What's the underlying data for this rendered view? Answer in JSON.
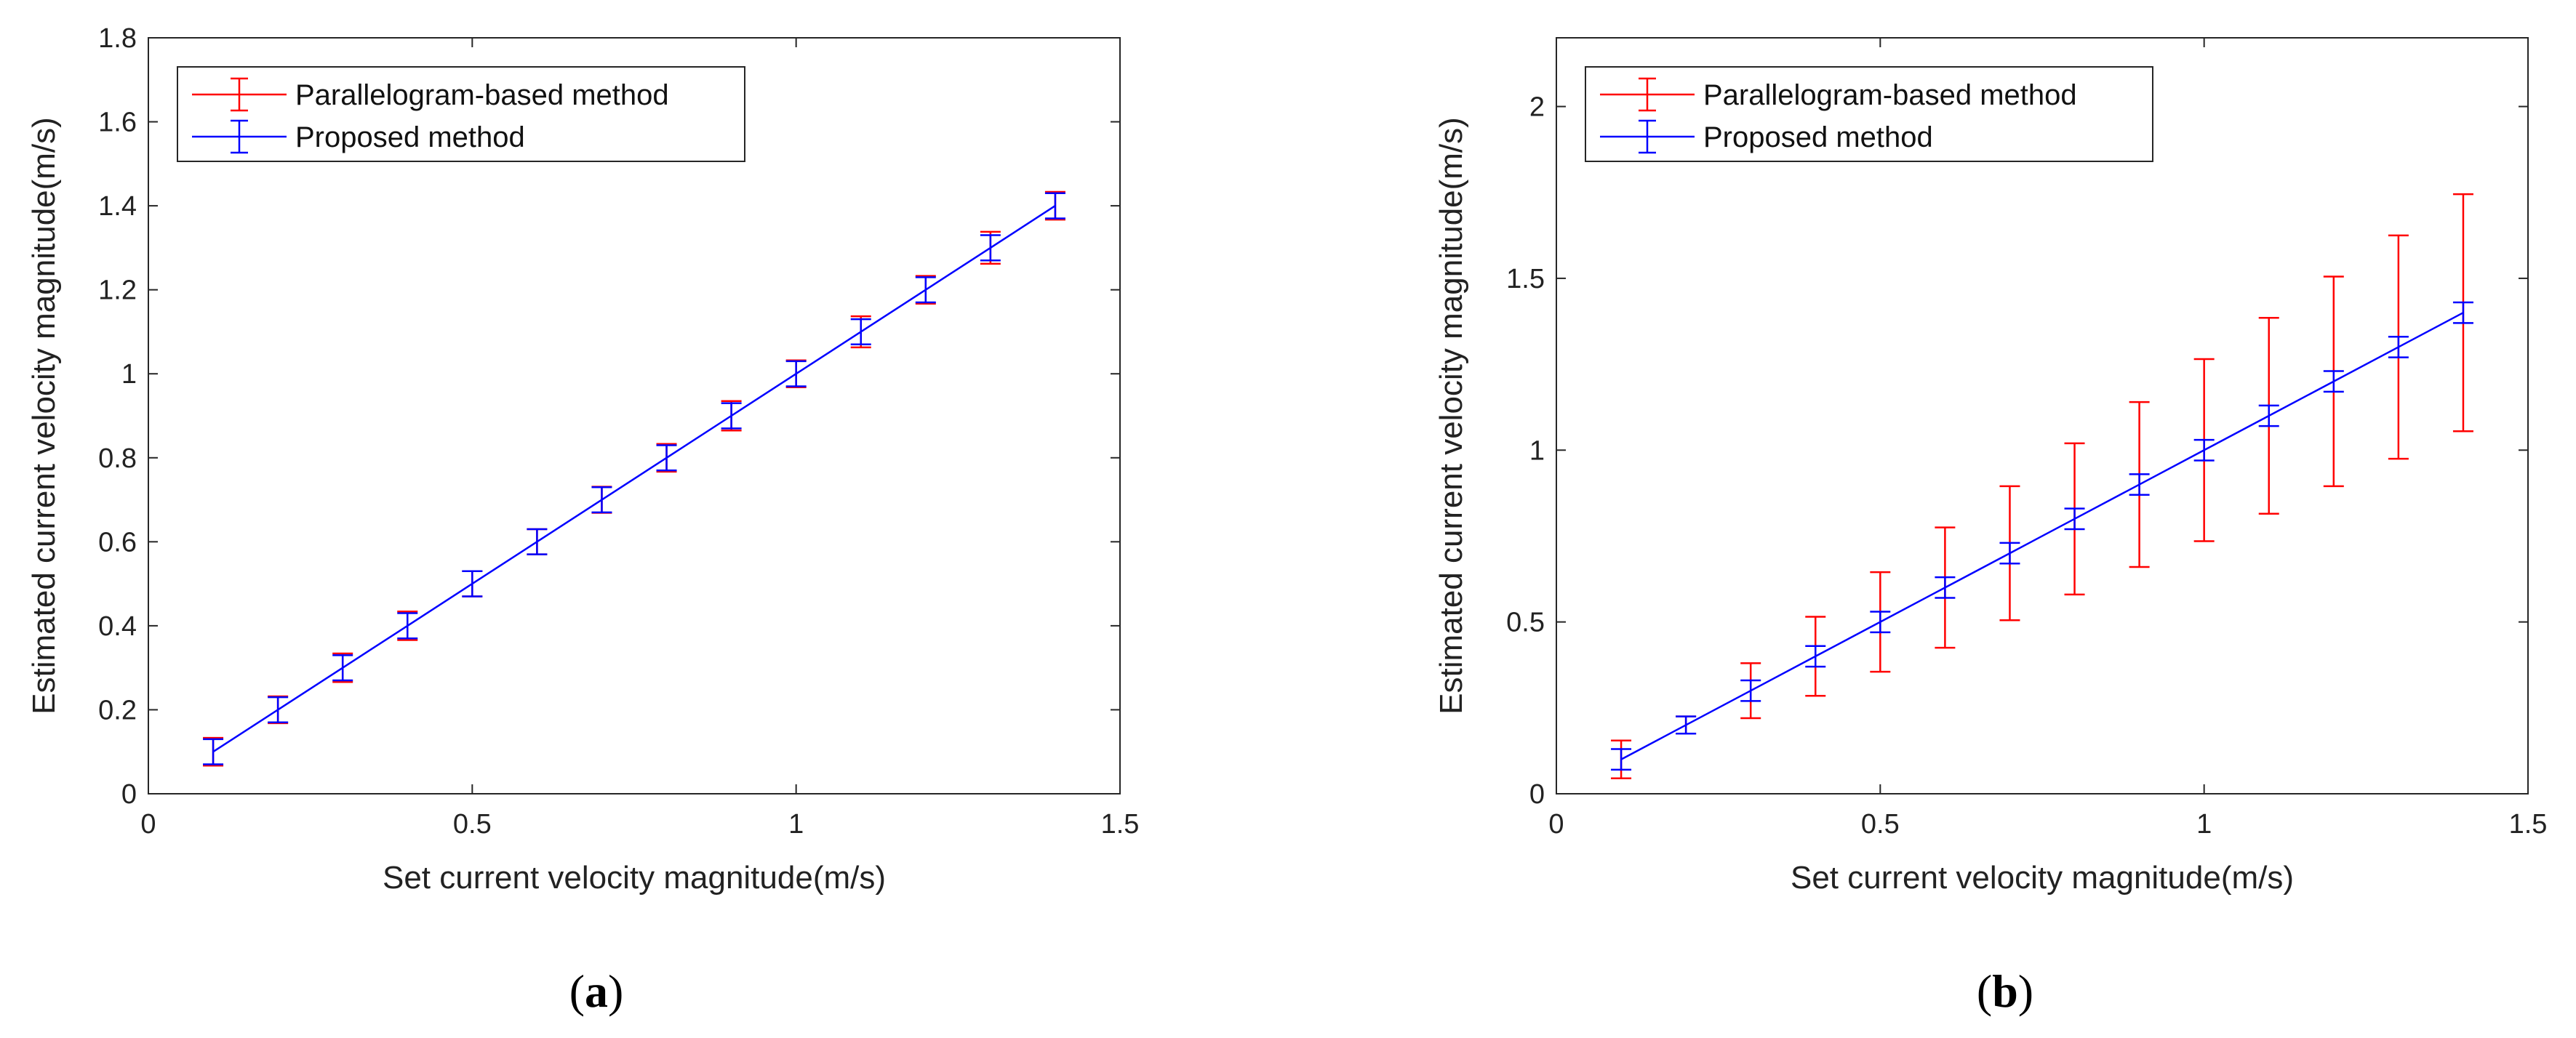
{
  "chart_data": [
    {
      "type": "line",
      "panel_label": "a",
      "panel_open": "(",
      "panel_close": ")",
      "xlabel": "Set current velocity magnitude(m/s)",
      "ylabel": "Estimated current velocity magnitude(m/s)",
      "xlim": [
        0,
        1.5
      ],
      "ylim": [
        0,
        1.8
      ],
      "xticks": [
        0,
        0.5,
        1,
        1.5
      ],
      "xtick_labels": [
        "0",
        "0.5",
        "1",
        "1.5"
      ],
      "yticks": [
        0,
        0.2,
        0.4,
        0.6,
        0.8,
        1.0,
        1.2,
        1.4,
        1.6,
        1.8
      ],
      "ytick_labels": [
        "0",
        "0.2",
        "0.4",
        "0.6",
        "0.8",
        "1",
        "1.2",
        "1.4",
        "1.6",
        "1.8"
      ],
      "legend_position": "top-left",
      "series": [
        {
          "name": "Parallelogram-based method",
          "color": "#ff0000",
          "x": [
            0.1,
            0.2,
            0.3,
            0.4,
            0.5,
            0.6,
            0.7,
            0.8,
            0.9,
            1.0,
            1.1,
            1.2,
            1.3,
            1.4
          ],
          "y": [
            0.1,
            0.2,
            0.3,
            0.4,
            0.5,
            0.6,
            0.7,
            0.8,
            0.9,
            1.0,
            1.1,
            1.2,
            1.3,
            1.4
          ],
          "err": [
            0.033,
            0.032,
            0.034,
            0.034,
            0.03,
            0.03,
            0.031,
            0.033,
            0.035,
            0.032,
            0.037,
            0.033,
            0.038,
            0.033
          ],
          "draw_line": false
        },
        {
          "name": "Proposed method",
          "color": "#0000ff",
          "x": [
            0.1,
            0.2,
            0.3,
            0.4,
            0.5,
            0.6,
            0.7,
            0.8,
            0.9,
            1.0,
            1.1,
            1.2,
            1.3,
            1.4
          ],
          "y": [
            0.1,
            0.2,
            0.3,
            0.4,
            0.5,
            0.6,
            0.7,
            0.8,
            0.9,
            1.0,
            1.1,
            1.2,
            1.3,
            1.4
          ],
          "err": [
            0.03,
            0.03,
            0.03,
            0.03,
            0.03,
            0.03,
            0.03,
            0.03,
            0.03,
            0.03,
            0.03,
            0.03,
            0.03,
            0.03
          ],
          "draw_line": true
        }
      ]
    },
    {
      "type": "line",
      "panel_label": "b",
      "panel_open": "(",
      "panel_close": ")",
      "xlabel": "Set current velocity magnitude(m/s)",
      "ylabel": "Estimated current velocity magnitude(m/s)",
      "xlim": [
        0,
        1.5
      ],
      "ylim": [
        0,
        2.2
      ],
      "xticks": [
        0,
        0.5,
        1,
        1.5
      ],
      "xtick_labels": [
        "0",
        "0.5",
        "1",
        "1.5"
      ],
      "yticks": [
        0,
        0.5,
        1,
        1.5,
        2
      ],
      "ytick_labels": [
        "0",
        "0.5",
        "1",
        "1.5",
        "2"
      ],
      "legend_position": "top-left",
      "series": [
        {
          "name": "Parallelogram-based method",
          "color": "#ff0000",
          "x": [
            0.1,
            0.2,
            0.3,
            0.4,
            0.5,
            0.6,
            0.7,
            0.8,
            0.9,
            1.0,
            1.1,
            1.2,
            1.3,
            1.4
          ],
          "y": [
            0.1,
            0.2,
            0.3,
            0.4,
            0.5,
            0.6,
            0.7,
            0.8,
            0.9,
            1.0,
            1.1,
            1.2,
            1.3,
            1.4
          ],
          "err": [
            0.055,
            0.025,
            0.08,
            0.115,
            0.145,
            0.175,
            0.195,
            0.22,
            0.24,
            0.265,
            0.285,
            0.305,
            0.325,
            0.345
          ],
          "draw_line": false
        },
        {
          "name": "Proposed method",
          "color": "#0000ff",
          "x": [
            0.1,
            0.2,
            0.3,
            0.4,
            0.5,
            0.6,
            0.7,
            0.8,
            0.9,
            1.0,
            1.1,
            1.2,
            1.3,
            1.4
          ],
          "y": [
            0.1,
            0.2,
            0.3,
            0.4,
            0.5,
            0.6,
            0.7,
            0.8,
            0.9,
            1.0,
            1.1,
            1.2,
            1.3,
            1.4
          ],
          "err": [
            0.03,
            0.025,
            0.03,
            0.03,
            0.03,
            0.03,
            0.03,
            0.03,
            0.03,
            0.03,
            0.03,
            0.03,
            0.03,
            0.03
          ],
          "draw_line": true
        }
      ]
    }
  ]
}
